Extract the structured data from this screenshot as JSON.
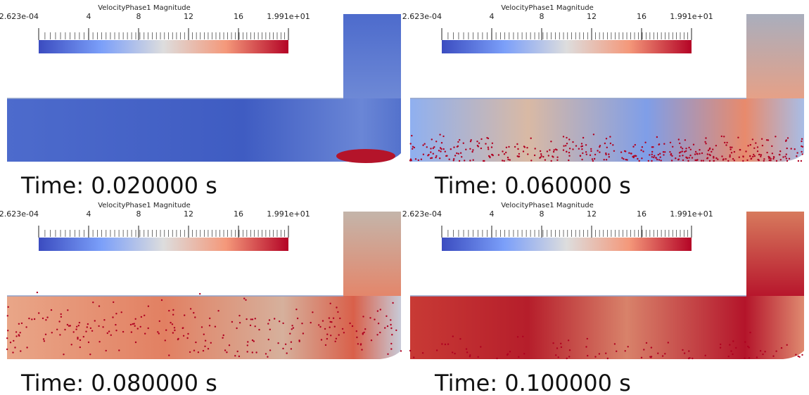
{
  "panels": [
    {
      "colorbar_title": "VelocityPhase1 Magnitude",
      "ticks": [
        "2.623e-04",
        "4",
        "8",
        "12",
        "16",
        "1.991e+01"
      ],
      "time": "Time: 0.020000 s"
    },
    {
      "colorbar_title": "VelocityPhase1 Magnitude",
      "ticks": [
        "2.623e-04",
        "4",
        "8",
        "12",
        "16",
        "1.991e+01"
      ],
      "time": "Time: 0.060000 s"
    },
    {
      "colorbar_title": "VelocityPhase1 Magnitude",
      "ticks": [
        "2.623e-04",
        "4",
        "8",
        "12",
        "16",
        "1.991e+01"
      ],
      "time": "Time: 0.080000 s"
    },
    {
      "colorbar_title": "VelocityPhase1 Magnitude",
      "ticks": [
        "2.623e-04",
        "4",
        "8",
        "12",
        "16",
        "1.991e+01"
      ],
      "time": "Time: 0.100000 s"
    }
  ]
}
